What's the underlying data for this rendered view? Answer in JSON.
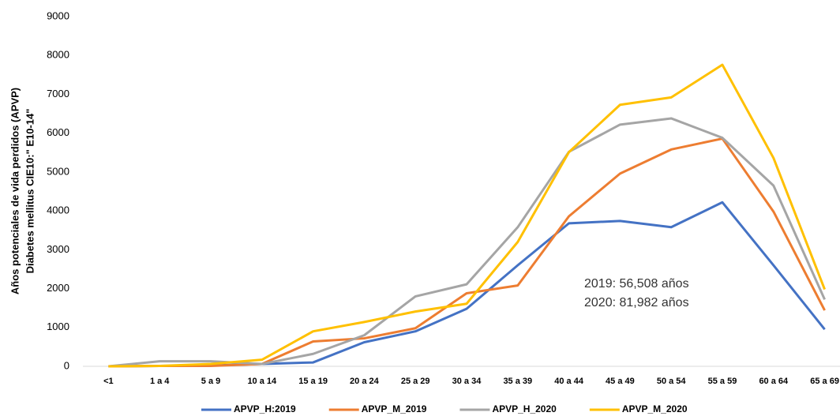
{
  "chart_data": {
    "type": "line",
    "y_label": [
      "Años potenciales de vida perdidos (APVP)",
      "Diabetes mellitus CIE10:\" E10-14\""
    ],
    "categories": [
      "<1",
      "1 a 4",
      "5 a 9",
      "10 a 14",
      "15 a 19",
      "20 a 24",
      "25 a 29",
      "30 a 34",
      "35 a 39",
      "40 a 44",
      "45 a 49",
      "50 a 54",
      "55 a 59",
      "60 a 64",
      "65 a 69"
    ],
    "series": [
      {
        "name": "APVP_H:2019",
        "color": "#4472c4",
        "values": [
          0,
          10,
          20,
          60,
          100,
          620,
          900,
          1480,
          2600,
          3680,
          3740,
          3580,
          4220,
          2600,
          950
        ]
      },
      {
        "name": "APVP_M_2019",
        "color": "#ed7d31",
        "values": [
          0,
          10,
          10,
          60,
          640,
          720,
          980,
          1880,
          2080,
          3860,
          4960,
          5580,
          5860,
          3980,
          1440
        ]
      },
      {
        "name": "APVP_H_2020",
        "color": "#a5a5a5",
        "values": [
          0,
          130,
          130,
          60,
          320,
          800,
          1800,
          2110,
          3580,
          5520,
          6220,
          6380,
          5880,
          4650,
          1720
        ]
      },
      {
        "name": "APVP_M_2020",
        "color": "#ffc000",
        "values": [
          0,
          10,
          60,
          170,
          900,
          1140,
          1410,
          1610,
          3200,
          5510,
          6730,
          6920,
          7760,
          5360,
          1980
        ]
      }
    ],
    "annotations": [
      "2019: 56,508 años",
      "2020: 81,982 años"
    ],
    "ylim": [
      0,
      9000
    ],
    "yticks": [
      0,
      1000,
      2000,
      3000,
      4000,
      5000,
      6000,
      7000,
      8000,
      9000
    ],
    "grid": false,
    "legend": "bottom"
  }
}
